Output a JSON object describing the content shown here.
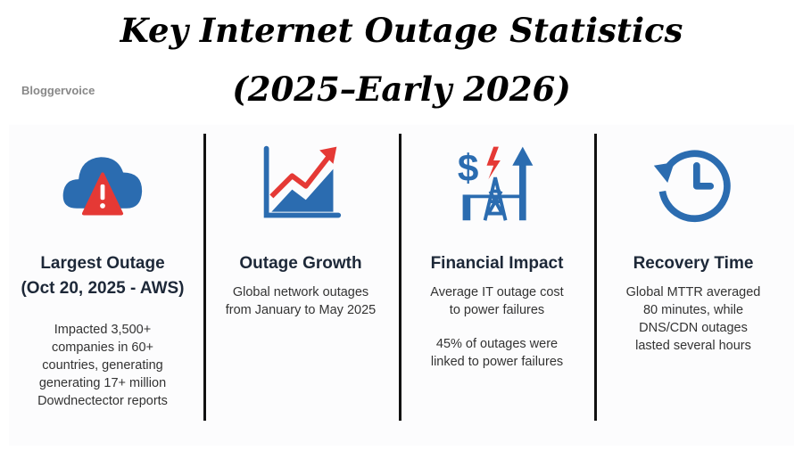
{
  "title": {
    "line1": "Key Internet Outage Statistics",
    "line2": "(2025–Early 2026)"
  },
  "watermark": "Bloggervoice",
  "colors": {
    "blue": "#2b6cb0",
    "red": "#e53935",
    "heading": "#1d2838"
  },
  "columns": [
    {
      "icon": "cloud-warning-icon",
      "heading": "Largest Outage",
      "subheading": "(Oct 20, 2025 - AWS)",
      "body": [
        "Impacted 3,500+",
        "companies in 60+",
        "countries, generating",
        "generating 17+ million",
        "Dowdnectector reports"
      ]
    },
    {
      "icon": "growth-chart-icon",
      "heading": "Outage Growth",
      "body": [
        "Global network outages",
        "from January to May 2025"
      ]
    },
    {
      "icon": "power-cost-icon",
      "heading": "Financial Impact",
      "body": [
        "Average IT outage cost",
        "to power failures"
      ],
      "body2": [
        "45% of outages were",
        "linked to power failures"
      ]
    },
    {
      "icon": "clock-history-icon",
      "heading": "Recovery Time",
      "body": [
        "Global MTTR averaged",
        "80 minutes, while",
        "DNS/CDN outages",
        "lasted several hours"
      ]
    }
  ]
}
